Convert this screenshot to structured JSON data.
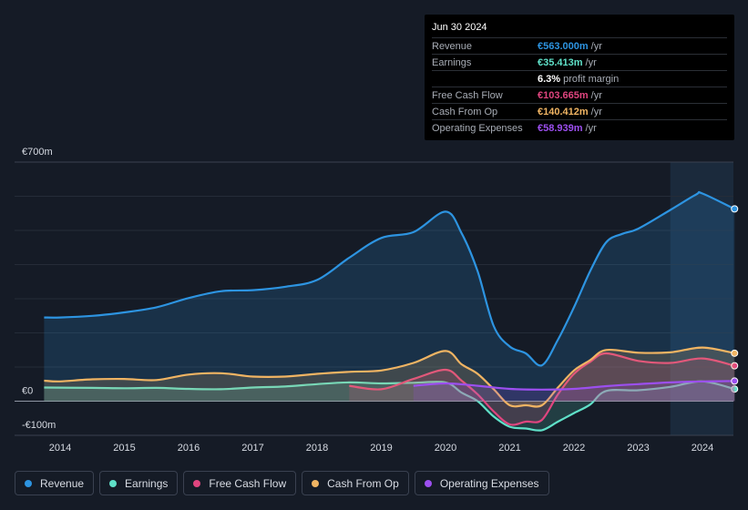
{
  "chart_data": {
    "type": "area",
    "title": "",
    "xlabel": "",
    "ylabel": "",
    "ylim": [
      -100,
      700
    ],
    "y_tick_labels": [
      "€700m",
      "€0",
      "-€100m"
    ],
    "x_tick_labels": [
      "2014",
      "2015",
      "2016",
      "2017",
      "2018",
      "2019",
      "2020",
      "2021",
      "2022",
      "2023",
      "2024"
    ],
    "highlight_range": [
      2023.5,
      2024.5
    ],
    "series": [
      {
        "name": "Revenue",
        "color": "#2d94e1",
        "points": [
          [
            2013.75,
            245
          ],
          [
            2014.0,
            245
          ],
          [
            2014.5,
            250
          ],
          [
            2015.0,
            260
          ],
          [
            2015.5,
            275
          ],
          [
            2016.0,
            302
          ],
          [
            2016.5,
            322
          ],
          [
            2017.0,
            325
          ],
          [
            2017.5,
            335
          ],
          [
            2018.0,
            355
          ],
          [
            2018.5,
            420
          ],
          [
            2019.0,
            478
          ],
          [
            2019.5,
            495
          ],
          [
            2020.0,
            555
          ],
          [
            2020.25,
            492
          ],
          [
            2020.5,
            380
          ],
          [
            2020.75,
            220
          ],
          [
            2021.0,
            160
          ],
          [
            2021.25,
            140
          ],
          [
            2021.5,
            105
          ],
          [
            2021.75,
            180
          ],
          [
            2022.0,
            275
          ],
          [
            2022.25,
            380
          ],
          [
            2022.5,
            465
          ],
          [
            2022.75,
            490
          ],
          [
            2023.0,
            505
          ],
          [
            2023.5,
            560
          ],
          [
            2023.9,
            605
          ],
          [
            2024.0,
            608
          ],
          [
            2024.5,
            563
          ]
        ]
      },
      {
        "name": "Earnings",
        "color": "#5fe0c8",
        "points": [
          [
            2013.75,
            40
          ],
          [
            2014.5,
            39
          ],
          [
            2015.0,
            38
          ],
          [
            2015.5,
            39
          ],
          [
            2016.0,
            36
          ],
          [
            2016.5,
            35
          ],
          [
            2017.0,
            40
          ],
          [
            2017.5,
            43
          ],
          [
            2018.0,
            50
          ],
          [
            2018.5,
            55
          ],
          [
            2019.0,
            52
          ],
          [
            2019.5,
            54
          ],
          [
            2020.0,
            55
          ],
          [
            2020.25,
            25
          ],
          [
            2020.5,
            0
          ],
          [
            2020.75,
            -45
          ],
          [
            2021.0,
            -75
          ],
          [
            2021.25,
            -80
          ],
          [
            2021.5,
            -85
          ],
          [
            2021.75,
            -60
          ],
          [
            2022.0,
            -35
          ],
          [
            2022.25,
            -10
          ],
          [
            2022.5,
            30
          ],
          [
            2023.0,
            32
          ],
          [
            2023.5,
            42
          ],
          [
            2024.0,
            58
          ],
          [
            2024.5,
            35.4
          ]
        ]
      },
      {
        "name": "Free Cash Flow",
        "color": "#e0457f",
        "points": [
          [
            2018.5,
            45
          ],
          [
            2019.0,
            35
          ],
          [
            2019.5,
            65
          ],
          [
            2020.0,
            92
          ],
          [
            2020.25,
            60
          ],
          [
            2020.5,
            20
          ],
          [
            2020.75,
            -30
          ],
          [
            2021.0,
            -68
          ],
          [
            2021.25,
            -60
          ],
          [
            2021.5,
            -55
          ],
          [
            2021.75,
            20
          ],
          [
            2022.0,
            80
          ],
          [
            2022.25,
            115
          ],
          [
            2022.5,
            140
          ],
          [
            2023.0,
            118
          ],
          [
            2023.5,
            112
          ],
          [
            2024.0,
            125
          ],
          [
            2024.5,
            103.7
          ]
        ]
      },
      {
        "name": "Cash From Op",
        "color": "#f0b463",
        "points": [
          [
            2013.75,
            60
          ],
          [
            2014.0,
            58
          ],
          [
            2014.5,
            64
          ],
          [
            2015.0,
            65
          ],
          [
            2015.5,
            62
          ],
          [
            2016.0,
            78
          ],
          [
            2016.5,
            82
          ],
          [
            2017.0,
            72
          ],
          [
            2017.5,
            72
          ],
          [
            2018.0,
            80
          ],
          [
            2018.5,
            86
          ],
          [
            2019.0,
            90
          ],
          [
            2019.5,
            112
          ],
          [
            2020.0,
            147
          ],
          [
            2020.25,
            108
          ],
          [
            2020.5,
            80
          ],
          [
            2020.75,
            35
          ],
          [
            2021.0,
            -12
          ],
          [
            2021.25,
            -12
          ],
          [
            2021.5,
            -12
          ],
          [
            2021.75,
            40
          ],
          [
            2022.0,
            90
          ],
          [
            2022.25,
            120
          ],
          [
            2022.5,
            150
          ],
          [
            2023.0,
            142
          ],
          [
            2023.5,
            143
          ],
          [
            2024.0,
            157
          ],
          [
            2024.5,
            140.4
          ]
        ]
      },
      {
        "name": "Operating Expenses",
        "color": "#9c4fef",
        "points": [
          [
            2019.5,
            45
          ],
          [
            2020.0,
            52
          ],
          [
            2020.5,
            45
          ],
          [
            2021.0,
            36
          ],
          [
            2021.5,
            34
          ],
          [
            2022.0,
            36
          ],
          [
            2022.5,
            44
          ],
          [
            2023.0,
            50
          ],
          [
            2023.5,
            55
          ],
          [
            2024.0,
            58
          ],
          [
            2024.5,
            58.9
          ]
        ]
      }
    ],
    "tooltip": {
      "date": "Jun 30 2024",
      "rows": [
        {
          "label": "Revenue",
          "value": "€563.000m",
          "unit": "/yr",
          "color": "#2d94e1"
        },
        {
          "label": "Earnings",
          "value": "€35.413m",
          "unit": "/yr",
          "color": "#5fe0c8"
        },
        {
          "label": "",
          "value": "6.3%",
          "unit": "profit margin",
          "color": "#ffffff"
        },
        {
          "label": "Free Cash Flow",
          "value": "€103.665m",
          "unit": "/yr",
          "color": "#e0457f"
        },
        {
          "label": "Cash From Op",
          "value": "€140.412m",
          "unit": "/yr",
          "color": "#f0b463"
        },
        {
          "label": "Operating Expenses",
          "value": "€58.939m",
          "unit": "/yr",
          "color": "#9c4fef"
        }
      ]
    }
  },
  "legend": [
    {
      "label": "Revenue",
      "color": "#2d94e1"
    },
    {
      "label": "Earnings",
      "color": "#5fe0c8"
    },
    {
      "label": "Free Cash Flow",
      "color": "#e0457f"
    },
    {
      "label": "Cash From Op",
      "color": "#f0b463"
    },
    {
      "label": "Operating Expenses",
      "color": "#9c4fef"
    }
  ]
}
